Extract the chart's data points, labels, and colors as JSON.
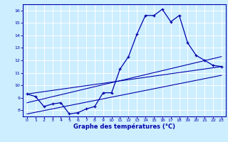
{
  "background_color": "#cceeff",
  "grid_color": "#ffffff",
  "line_color": "#0000aa",
  "xlabel": "Graphe des températures (°C)",
  "ylim": [
    7.5,
    16.5
  ],
  "xlim": [
    -0.5,
    23.5
  ],
  "yticks": [
    8,
    9,
    10,
    11,
    12,
    13,
    14,
    15,
    16
  ],
  "xticks": [
    0,
    1,
    2,
    3,
    4,
    5,
    6,
    7,
    8,
    9,
    10,
    11,
    12,
    13,
    14,
    15,
    16,
    17,
    18,
    19,
    20,
    21,
    22,
    23
  ],
  "line1_x": [
    0,
    1,
    2,
    3,
    4,
    5,
    6,
    7,
    8,
    9,
    10,
    11,
    12,
    13,
    14,
    15,
    16,
    17,
    18,
    19,
    20,
    21,
    22,
    23
  ],
  "line1_y": [
    9.3,
    9.1,
    8.3,
    8.5,
    8.6,
    7.7,
    7.8,
    8.1,
    8.3,
    9.4,
    9.4,
    11.3,
    12.3,
    14.1,
    15.6,
    15.6,
    16.1,
    15.1,
    15.6,
    13.4,
    12.4,
    12.0,
    11.6,
    11.5
  ],
  "line2_x": [
    0,
    23
  ],
  "line2_y": [
    9.3,
    11.5
  ],
  "line3_x": [
    0,
    23
  ],
  "line3_y": [
    8.6,
    12.3
  ],
  "line4_x": [
    0,
    23
  ],
  "line4_y": [
    7.7,
    10.8
  ]
}
